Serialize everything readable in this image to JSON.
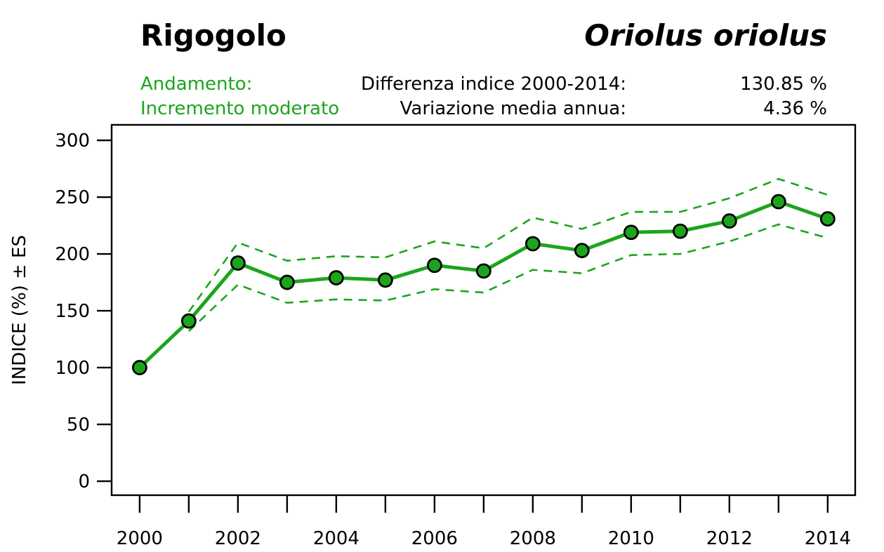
{
  "header": {
    "title": "Rigogolo",
    "species": "Oriolus oriolus",
    "trend_label": "Andamento:",
    "trend_value": "Incremento moderato",
    "stats": [
      {
        "label": "Differenza indice 2000-2014:",
        "value": "130.85 %"
      },
      {
        "label": "Variazione media annua:",
        "value": "4.36 %"
      }
    ]
  },
  "colors": {
    "green": "#1CA51C",
    "axis": "#000000"
  },
  "chart_data": {
    "type": "line",
    "title": "",
    "xlabel": "",
    "ylabel": "INDICE (%) ± ES",
    "x": [
      2000,
      2001,
      2002,
      2003,
      2004,
      2005,
      2006,
      2007,
      2008,
      2009,
      2010,
      2011,
      2012,
      2013,
      2014
    ],
    "series": [
      {
        "name": "indice",
        "style": "solid-markers",
        "values": [
          100,
          141,
          192,
          175,
          179,
          177,
          190,
          185,
          209,
          203,
          219,
          220,
          229,
          246,
          230.85
        ]
      },
      {
        "name": "limite-superiore-es",
        "style": "dashed",
        "values": [
          null,
          149,
          210,
          194,
          198,
          197,
          211,
          205,
          232,
          222,
          237,
          237,
          249,
          266,
          252
        ]
      },
      {
        "name": "limite-inferiore-es",
        "style": "dashed",
        "values": [
          null,
          132,
          173,
          157,
          160,
          159,
          169,
          166,
          186,
          183,
          199,
          200,
          211,
          226,
          214
        ]
      }
    ],
    "yticks": [
      0,
      50,
      100,
      150,
      200,
      250,
      300
    ],
    "xtick_every_year": true,
    "xtick_label_step": 2,
    "xtick_labels": [
      "2000",
      "2002",
      "2004",
      "2006",
      "2008",
      "2010",
      "2012",
      "2014"
    ],
    "xlim": [
      1999.43,
      2014.56
    ],
    "ylim": [
      -12.3,
      313.6
    ],
    "grid": false,
    "legend": false
  }
}
